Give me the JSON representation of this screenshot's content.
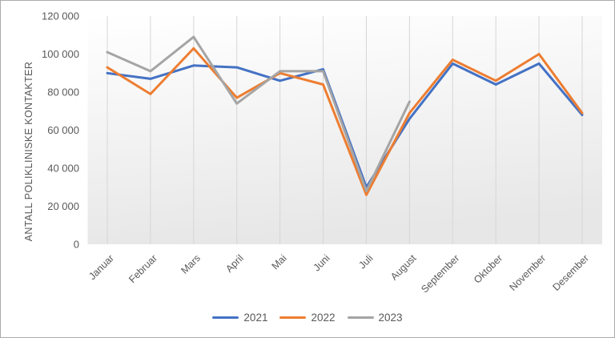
{
  "chart_data": {
    "type": "line",
    "title": "",
    "xlabel": "",
    "ylabel": "ANTALL POLIKLINISKE KONTAKTER",
    "categories": [
      "Januar",
      "Februar",
      "Mars",
      "April",
      "Mai",
      "Juni",
      "Juli",
      "August",
      "September",
      "Oktober",
      "November",
      "Desember"
    ],
    "y_axis": {
      "min": 0,
      "max": 120000,
      "step": 20000,
      "tick_labels": [
        "0",
        "20 000",
        "40 000",
        "60 000",
        "80 000",
        "100 000",
        "120 000"
      ]
    },
    "grid": "vertical-only",
    "legend_position": "bottom-center",
    "series": [
      {
        "name": "2021",
        "color": "#4472C4",
        "values": [
          90000,
          87000,
          94000,
          93000,
          86000,
          92000,
          30000,
          66000,
          95000,
          84000,
          95000,
          68000
        ]
      },
      {
        "name": "2022",
        "color": "#ED7D31",
        "values": [
          93000,
          79000,
          103000,
          77000,
          90000,
          84000,
          26000,
          69000,
          97000,
          86000,
          100000,
          69000
        ]
      },
      {
        "name": "2023",
        "color": "#A5A5A5",
        "values": [
          101000,
          91000,
          109000,
          74000,
          91000,
          91000,
          28000,
          75000
        ]
      }
    ]
  },
  "style": {
    "gridline_color": "#d6d6d6",
    "text_color": "#595959",
    "plot_gradient_top": "#ffffff",
    "plot_gradient_bottom": "#e7e7e7",
    "frame_border_color": "#ababab"
  }
}
